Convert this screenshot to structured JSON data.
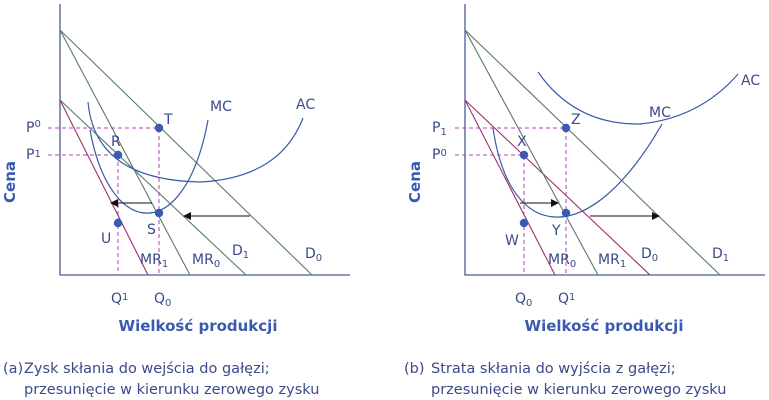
{
  "panels": [
    {
      "id": "a",
      "y_axis_title": "Cena",
      "x_axis_title": "Wielkość produkcji",
      "curves": {
        "mc": "MC",
        "ac": "AC",
        "d0": "D",
        "d0_sub": "0",
        "d1": "D",
        "d1_sub": "1",
        "mr0": "MR",
        "mr0_sub": "0",
        "mr1": "MR",
        "mr1_sub": "1"
      },
      "points": {
        "t": "T",
        "r": "R",
        "u": "U",
        "s": "S"
      },
      "price_labels": [
        {
          "main": "P",
          "sub": "0"
        },
        {
          "main": "P",
          "sub": "1"
        }
      ],
      "quantity_labels": [
        {
          "main": "Q",
          "sub": "1"
        },
        {
          "main": "Q",
          "sub": "0"
        }
      ],
      "caption": {
        "letter": "(a)",
        "line1": "Zysk skłania do wejścia do gałęzi;",
        "line2": "przesunięcie w kierunku zerowego zysku"
      }
    },
    {
      "id": "b",
      "y_axis_title": "Cena",
      "x_axis_title": "Wielkość produkcji",
      "curves": {
        "mc": "MC",
        "ac": "AC",
        "d0": "D",
        "d0_sub": "0",
        "d1": "D",
        "d1_sub": "1",
        "mr0": "MR",
        "mr0_sub": "0",
        "mr1": "MR",
        "mr1_sub": "1"
      },
      "points": {
        "z": "Z",
        "x": "X",
        "w": "W",
        "y": "Y"
      },
      "price_labels": [
        {
          "main": "P",
          "sub": "1"
        },
        {
          "main": "P",
          "sub": "0"
        }
      ],
      "quantity_labels": [
        {
          "main": "Q",
          "sub": "0"
        },
        {
          "main": "Q",
          "sub": "1"
        }
      ],
      "caption": {
        "letter": "(b)",
        "line1": "Strata skłania do wyjścia z gałęzi;",
        "line2": "przesunięcie w kierunku zerowego zysku"
      }
    }
  ]
}
